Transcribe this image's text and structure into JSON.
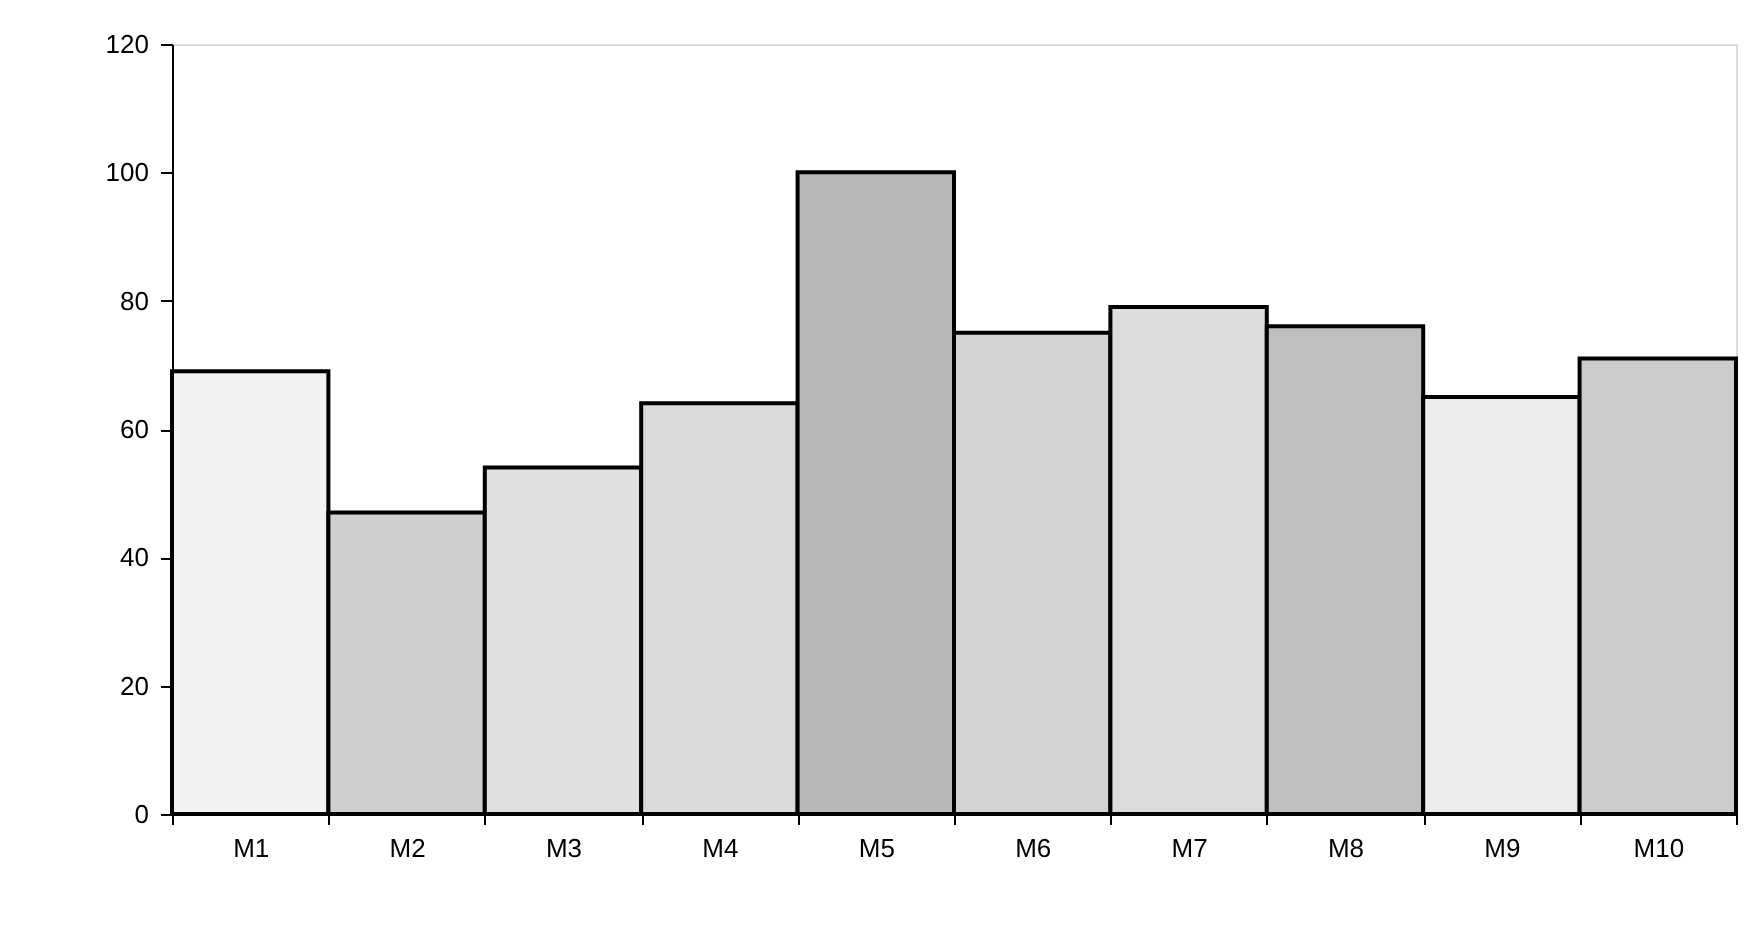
{
  "chart_data": {
    "type": "bar",
    "categories": [
      "M1",
      "M2",
      "M3",
      "M4",
      "M5",
      "M6",
      "M7",
      "M8",
      "M9",
      "M10"
    ],
    "values": [
      69,
      47,
      54,
      64,
      100,
      75,
      79,
      76,
      65,
      71
    ],
    "colors": [
      "#f2f2f2",
      "#cfcfcf",
      "#e0e0e0",
      "#dadada",
      "#b8b8b8",
      "#d4d4d4",
      "#dcdcdc",
      "#bfbfbf",
      "#ececec",
      "#cccccc"
    ],
    "ylim": [
      0,
      120
    ],
    "yticks": [
      0,
      20,
      40,
      60,
      80,
      100,
      120
    ],
    "grid": false,
    "legend": false
  }
}
